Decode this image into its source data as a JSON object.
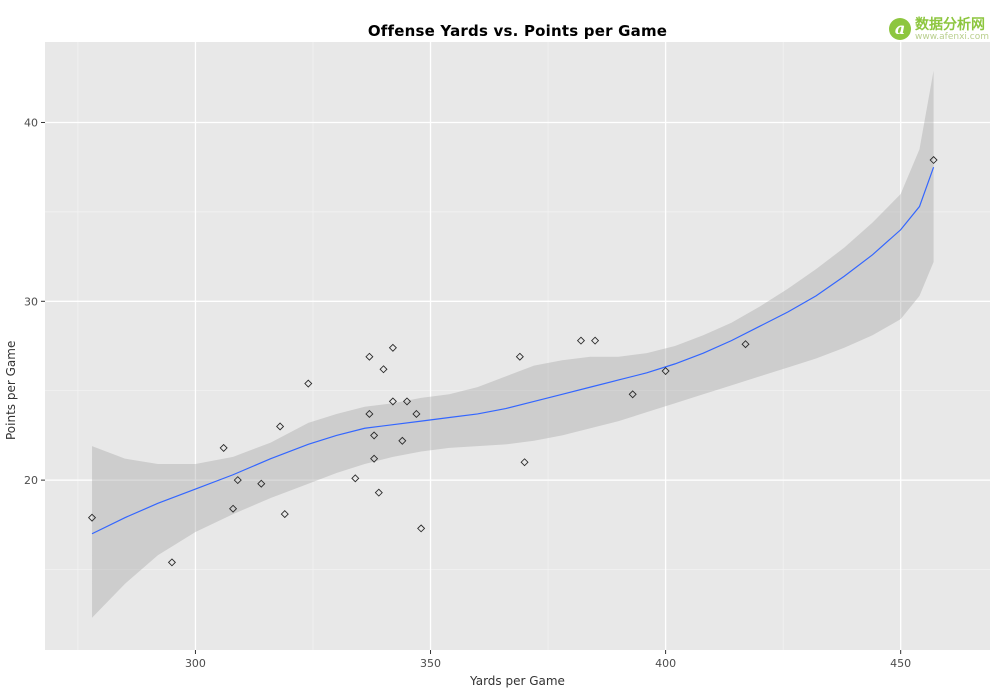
{
  "watermark": {
    "logo_letter": "a",
    "site_name": "数据分析网",
    "site_url": "www.afenxi.com"
  },
  "chart_data": {
    "type": "scatter",
    "title": "Offense Yards vs. Points per Game",
    "xlabel": "Yards per Game",
    "ylabel": "Points per Game",
    "xlim": [
      268,
      469
    ],
    "ylim": [
      10.5,
      44.5
    ],
    "x_major_ticks": [
      300,
      350,
      400,
      450
    ],
    "x_minor_ticks": [
      275,
      325,
      375,
      425
    ],
    "y_major_ticks": [
      20,
      30,
      40
    ],
    "y_minor_ticks": [
      15,
      25,
      35,
      45
    ],
    "grid": true,
    "legend_position": "none",
    "points": [
      [
        278,
        17.9
      ],
      [
        295,
        15.4
      ],
      [
        306,
        21.8
      ],
      [
        308,
        18.4
      ],
      [
        309,
        20.0
      ],
      [
        314,
        19.8
      ],
      [
        318,
        23.0
      ],
      [
        319,
        18.1
      ],
      [
        324,
        25.4
      ],
      [
        334,
        20.1
      ],
      [
        337,
        26.9
      ],
      [
        337,
        23.7
      ],
      [
        338,
        22.5
      ],
      [
        338,
        21.2
      ],
      [
        339,
        19.3
      ],
      [
        340,
        26.2
      ],
      [
        342,
        27.4
      ],
      [
        342,
        24.4
      ],
      [
        344,
        22.2
      ],
      [
        345,
        24.4
      ],
      [
        347,
        23.7
      ],
      [
        348,
        17.3
      ],
      [
        369,
        26.9
      ],
      [
        370,
        21.0
      ],
      [
        382,
        27.8
      ],
      [
        385,
        27.8
      ],
      [
        393,
        24.8
      ],
      [
        400,
        26.1
      ],
      [
        417,
        27.6
      ],
      [
        457,
        37.9
      ]
    ],
    "smooth_line": [
      [
        278,
        17.0
      ],
      [
        285,
        17.9
      ],
      [
        292,
        18.7
      ],
      [
        300,
        19.5
      ],
      [
        308,
        20.3
      ],
      [
        316,
        21.2
      ],
      [
        324,
        22.0
      ],
      [
        330,
        22.5
      ],
      [
        336,
        22.9
      ],
      [
        342,
        23.1
      ],
      [
        348,
        23.3
      ],
      [
        354,
        23.5
      ],
      [
        360,
        23.7
      ],
      [
        366,
        24.0
      ],
      [
        372,
        24.4
      ],
      [
        378,
        24.8
      ],
      [
        384,
        25.2
      ],
      [
        390,
        25.6
      ],
      [
        396,
        26.0
      ],
      [
        402,
        26.5
      ],
      [
        408,
        27.1
      ],
      [
        414,
        27.8
      ],
      [
        420,
        28.6
      ],
      [
        426,
        29.4
      ],
      [
        432,
        30.3
      ],
      [
        438,
        31.4
      ],
      [
        444,
        32.6
      ],
      [
        450,
        34.0
      ],
      [
        454,
        35.3
      ],
      [
        457,
        37.5
      ]
    ],
    "confidence_band": {
      "x": [
        278,
        285,
        292,
        300,
        308,
        316,
        324,
        330,
        336,
        342,
        348,
        354,
        360,
        366,
        372,
        378,
        384,
        390,
        396,
        402,
        408,
        414,
        420,
        426,
        432,
        438,
        444,
        450,
        454,
        457
      ],
      "upper": [
        21.9,
        21.2,
        20.9,
        20.9,
        21.3,
        22.1,
        23.2,
        23.7,
        24.1,
        24.3,
        24.6,
        24.8,
        25.2,
        25.8,
        26.4,
        26.7,
        26.9,
        26.9,
        27.1,
        27.5,
        28.1,
        28.8,
        29.7,
        30.7,
        31.8,
        33.0,
        34.4,
        36.0,
        38.5,
        42.9
      ],
      "lower": [
        12.3,
        14.2,
        15.8,
        17.1,
        18.1,
        19.0,
        19.8,
        20.4,
        20.9,
        21.3,
        21.6,
        21.8,
        21.9,
        22.0,
        22.2,
        22.5,
        22.9,
        23.3,
        23.8,
        24.3,
        24.8,
        25.3,
        25.8,
        26.3,
        26.8,
        27.4,
        28.1,
        29.0,
        30.3,
        32.2
      ]
    },
    "colors": {
      "panel_background": "#E8E8E8",
      "grid_major": "#FFFFFF",
      "grid_minor": "#F3F3F3",
      "band_fill": "#9A9A9A",
      "band_opacity": 0.35,
      "line": "#3366FF",
      "point_stroke": "#2B2B2B",
      "tick_label": "#4D4D4D",
      "tick_mark": "#333333"
    }
  }
}
